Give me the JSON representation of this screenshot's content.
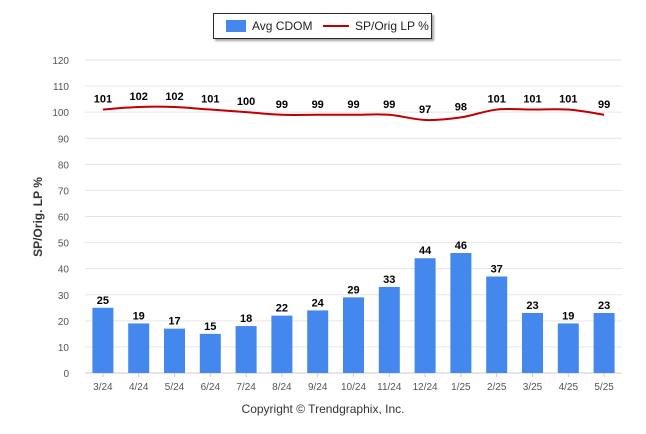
{
  "legend": {
    "cdom_label": "Avg CDOM",
    "lp_label": "SP/Orig LP %"
  },
  "copyright": "Copyright © Trendgraphix, Inc.",
  "colors": {
    "bar": "#4488ee",
    "line": "#c00000",
    "grid": "#e6e6e6",
    "axis_text": "#555555"
  },
  "chart_data": {
    "type": "bar",
    "ylabel": "SP/Orig. LP %",
    "ylim": [
      0,
      120
    ],
    "yticks": [
      0,
      10,
      20,
      30,
      40,
      50,
      60,
      70,
      80,
      90,
      100,
      110,
      120
    ],
    "grid": true,
    "legend_position": "top-center",
    "categories": [
      "3/24",
      "4/24",
      "5/24",
      "6/24",
      "7/24",
      "8/24",
      "9/24",
      "10/24",
      "11/24",
      "12/24",
      "1/25",
      "2/25",
      "3/25",
      "4/25",
      "5/25"
    ],
    "series": [
      {
        "name": "Avg CDOM",
        "type": "bar",
        "values": [
          25,
          19,
          17,
          15,
          18,
          22,
          24,
          29,
          33,
          44,
          46,
          37,
          23,
          19,
          23
        ]
      },
      {
        "name": "SP/Orig LP %",
        "type": "line",
        "values": [
          101,
          102,
          102,
          101,
          100,
          99,
          99,
          99,
          99,
          97,
          98,
          101,
          101,
          101,
          99
        ]
      }
    ]
  }
}
